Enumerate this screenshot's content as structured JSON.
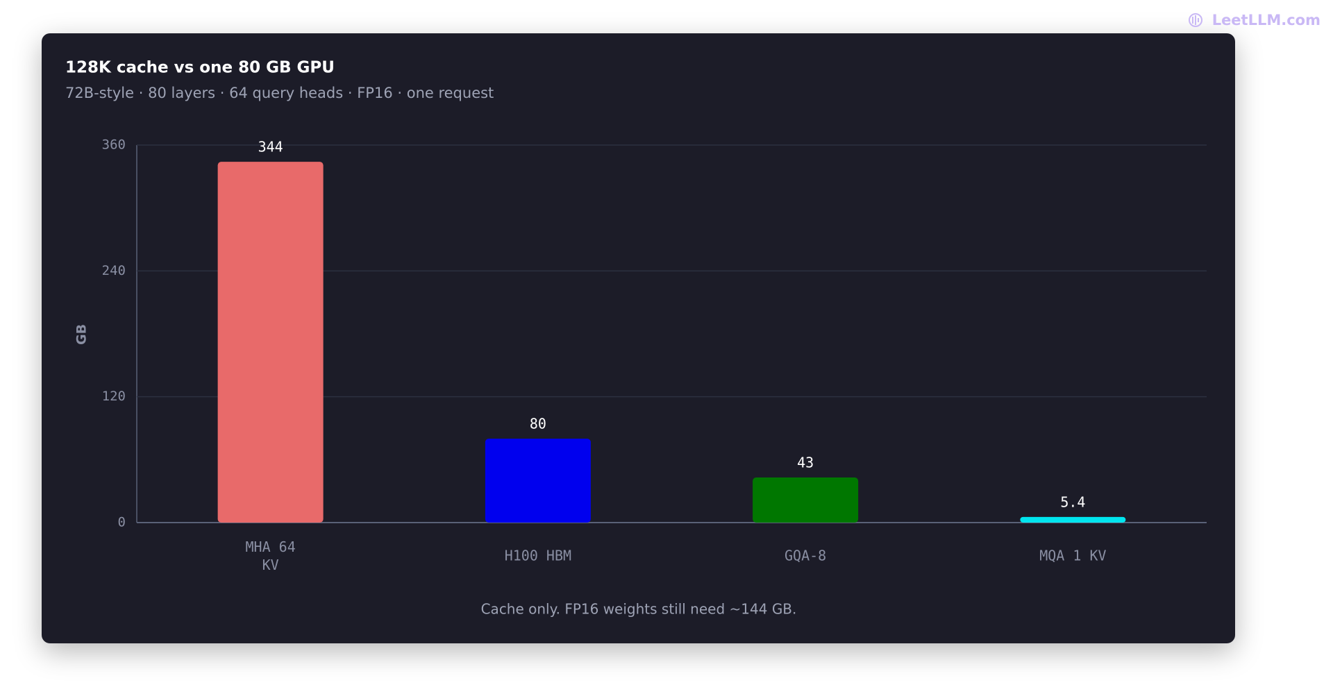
{
  "watermark": "LeetLLM.com",
  "chart_data": {
    "type": "bar",
    "title": "128K cache vs one 80 GB GPU",
    "subtitle": "72B-style · 80 layers · 64 query heads · FP16 · one request",
    "y_label": "GB",
    "categories": [
      "MHA 64 KV",
      "H100 HBM",
      "GQA-8",
      "MQA 1 KV"
    ],
    "values": [
      344,
      80,
      43,
      5.4
    ],
    "colors": [
      "#e86a6a",
      "#0000ee",
      "#007700",
      "#00e5ee"
    ],
    "ylim": [
      0,
      360
    ],
    "yticks": [
      0,
      120,
      240,
      360
    ],
    "grid": true,
    "annotation": "Cache only. FP16 weights still need ~144 GB."
  }
}
